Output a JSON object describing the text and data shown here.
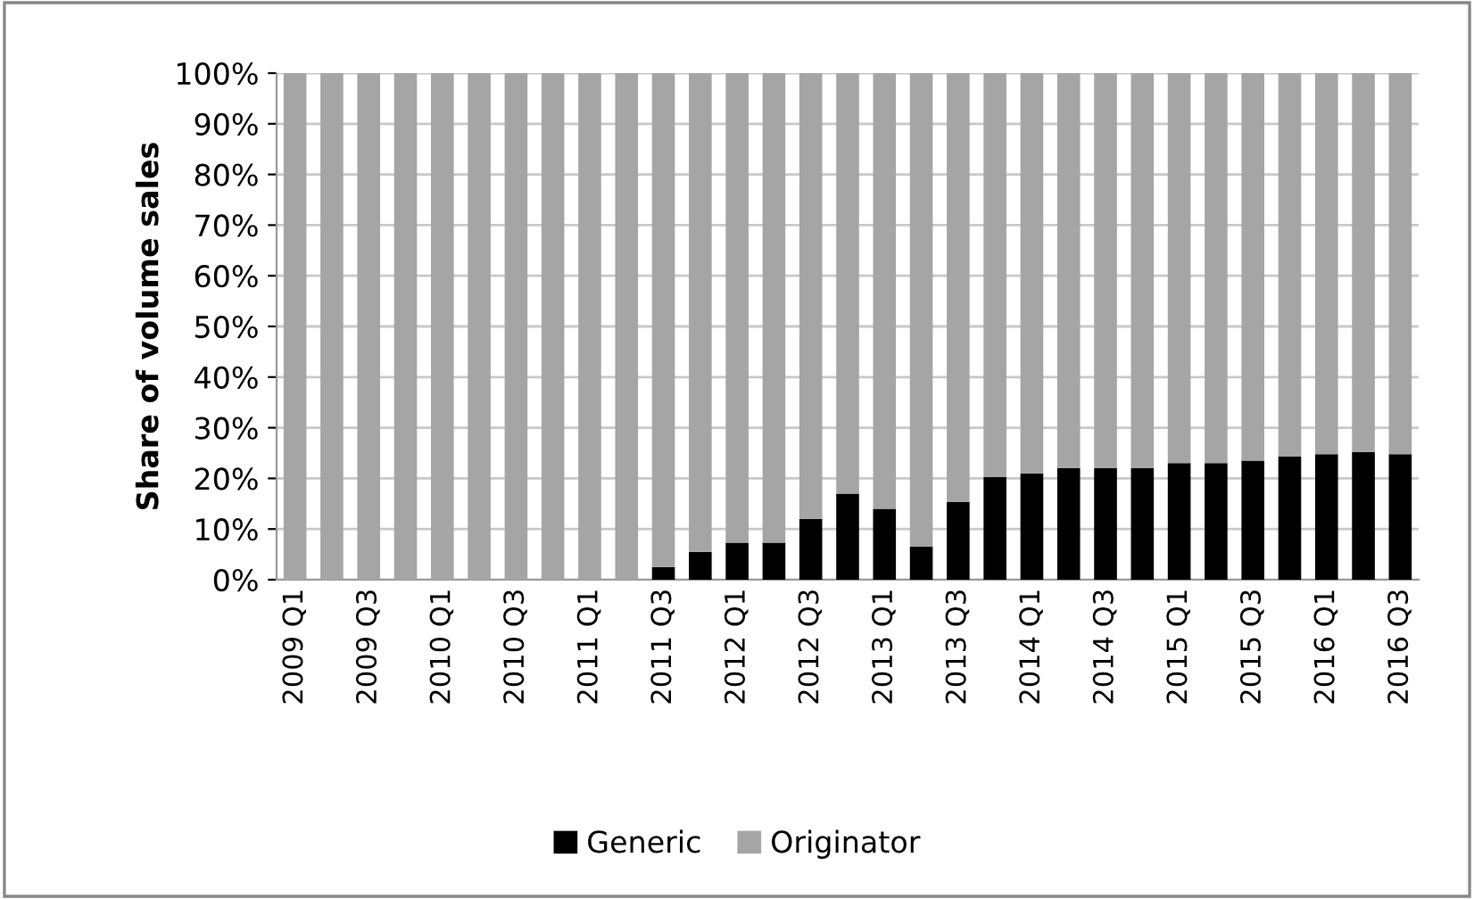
{
  "chart_data": {
    "type": "bar",
    "stacked": true,
    "ylabel": "Share of volume sales",
    "categories": [
      "2009 Q1",
      null,
      "2009 Q3",
      null,
      "2010 Q1",
      null,
      "2010 Q3",
      null,
      "2011 Q1",
      null,
      "2011 Q3",
      null,
      "2012 Q1",
      null,
      "2012 Q3",
      null,
      "2013 Q1",
      null,
      "2013 Q3",
      null,
      "2014 Q1",
      null,
      "2014 Q3",
      null,
      "2015 Q1",
      null,
      "2015 Q3",
      null,
      "2016 Q1",
      null,
      "2016 Q3"
    ],
    "series": [
      {
        "name": "Generic",
        "color": "#000000",
        "values": [
          0,
          0,
          0,
          0,
          0,
          0,
          0,
          0,
          0,
          0,
          2.5,
          5.5,
          7.3,
          7.3,
          12,
          17,
          14,
          6.5,
          15.3,
          20.3,
          21,
          22,
          22,
          22,
          23,
          23,
          23.5,
          24.3,
          24.8,
          25.2,
          24.8
        ]
      },
      {
        "name": "Originator",
        "color": "#a5a5a5",
        "values": [
          100,
          100,
          100,
          100,
          100,
          100,
          100,
          100,
          100,
          100,
          97.5,
          94.5,
          92.7,
          92.7,
          88,
          83,
          86,
          93.5,
          84.7,
          79.7,
          79,
          78,
          78,
          78,
          77,
          77,
          76.5,
          75.7,
          75.2,
          74.8,
          75.2
        ]
      }
    ],
    "ylim": [
      0,
      100
    ],
    "yticks": [
      {
        "value": 0,
        "label": "0%"
      },
      {
        "value": 10,
        "label": "10%"
      },
      {
        "value": 20,
        "label": "20%"
      },
      {
        "value": 30,
        "label": "30%"
      },
      {
        "value": 40,
        "label": "40%"
      },
      {
        "value": 50,
        "label": "50%"
      },
      {
        "value": 60,
        "label": "60%"
      },
      {
        "value": 70,
        "label": "70%"
      },
      {
        "value": 80,
        "label": "80%"
      },
      {
        "value": 90,
        "label": "90%"
      },
      {
        "value": 100,
        "label": "100%"
      }
    ],
    "grid": "y",
    "legend": "bottom"
  }
}
